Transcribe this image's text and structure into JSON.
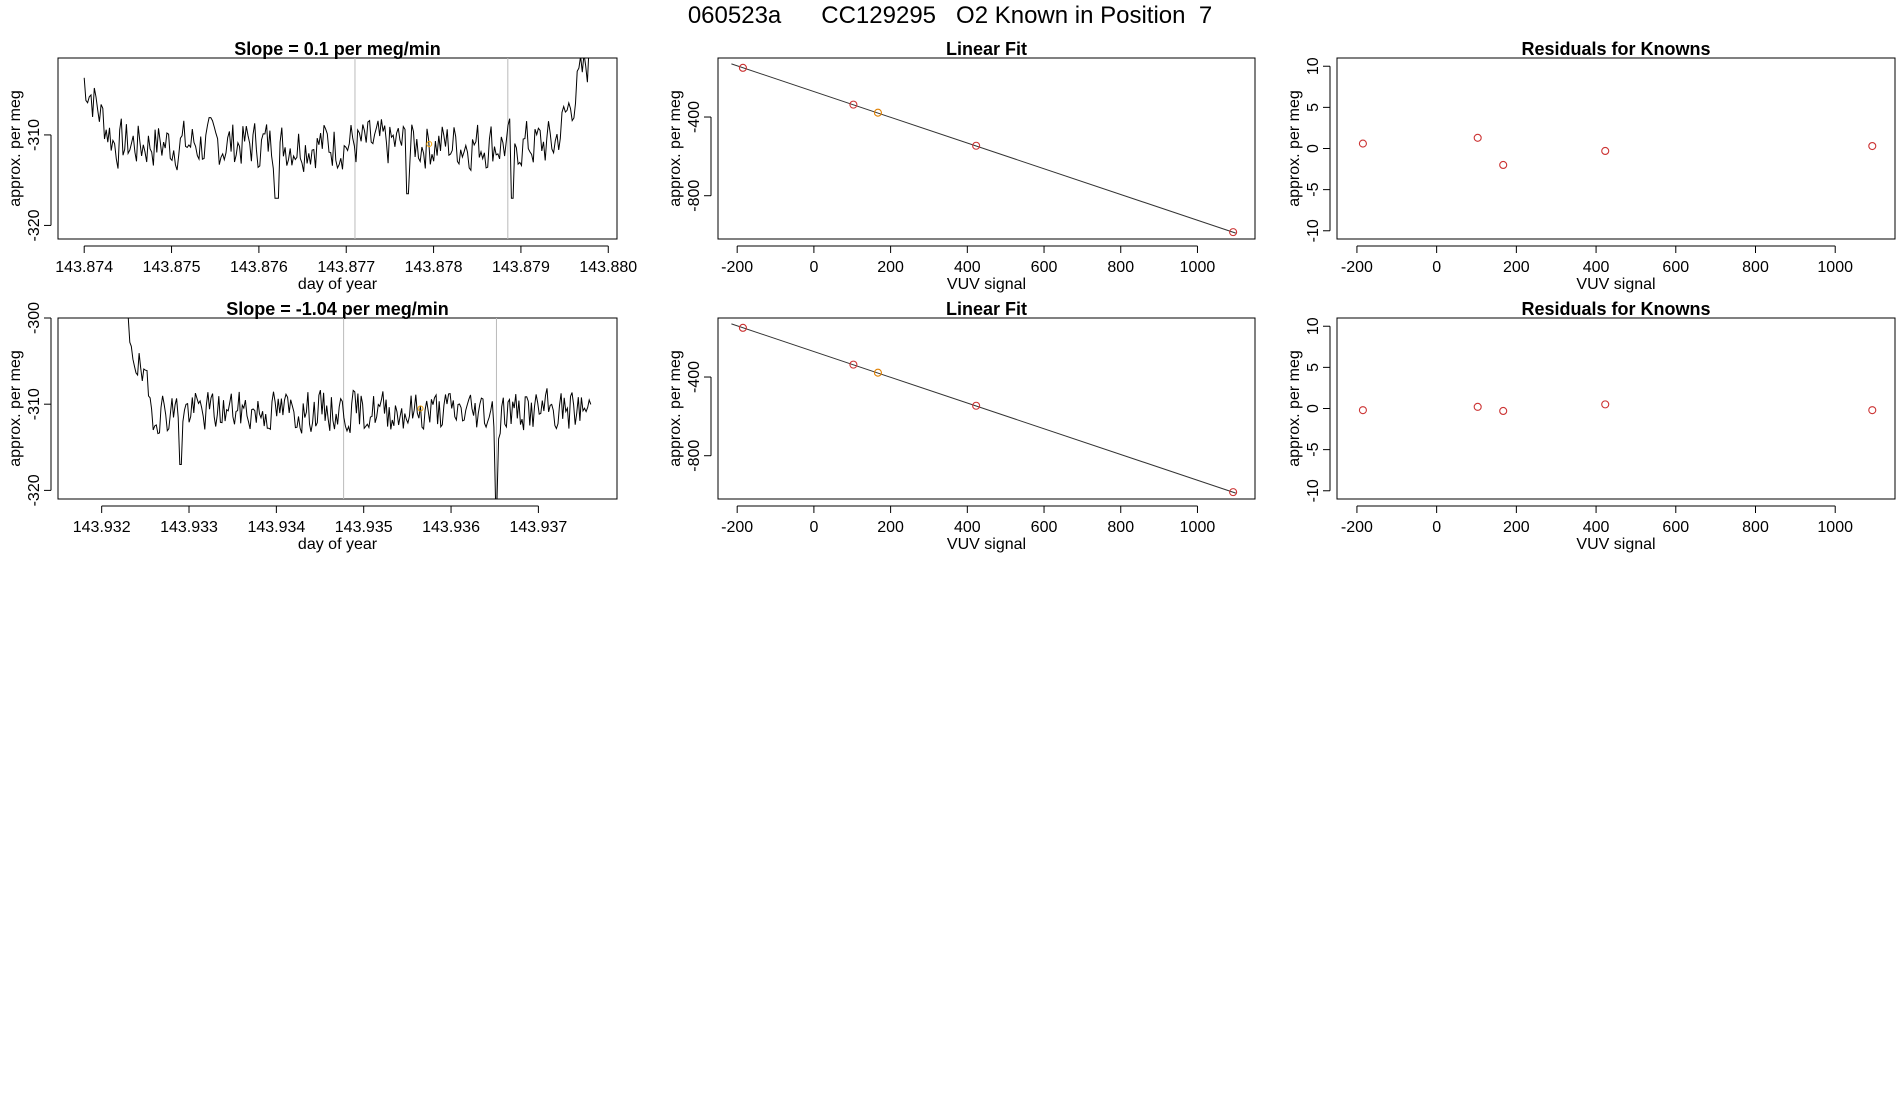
{
  "page_title": "060523a      CC129295   O2 Known in Position  7",
  "chart_data": [
    {
      "type": "line",
      "title": "Slope =  0.1  per meg/min",
      "xlabel": "day of year",
      "ylabel": "approx. per meg",
      "xlim": [
        143.8737,
        143.8801
      ],
      "ylim": [
        -321.5,
        -301.5
      ],
      "xticks": [
        143.874,
        143.875,
        143.876,
        143.877,
        143.878,
        143.879,
        143.88
      ],
      "xtick_labels": [
        "143.874",
        "143.875",
        "143.876",
        "143.877",
        "143.878",
        "143.879",
        "143.880"
      ],
      "yticks": [
        -310,
        -320
      ],
      "ytick_labels": [
        "-310",
        "-320"
      ],
      "vlines": [
        143.8771,
        143.87885
      ],
      "series": [
        {
          "name": "trace",
          "seed": 7,
          "start": -304,
          "mean": -311,
          "end": -301.5,
          "sd": 1.6,
          "n": 300,
          "x0": 143.874,
          "x1": 143.87978,
          "dips": [
            [
              143.8762,
              -317
            ],
            [
              143.8777,
              -316.5
            ],
            [
              143.8789,
              -317
            ]
          ]
        }
      ],
      "highlight": {
        "x": 143.87795,
        "y": -311,
        "color": "#f0a000"
      }
    },
    {
      "type": "scatter",
      "title": "Linear Fit",
      "xlabel": "VUV signal",
      "ylabel": "approx. per meg",
      "xlim": [
        -250,
        1150
      ],
      "ylim": [
        -1020,
        -100
      ],
      "xticks": [
        -200,
        0,
        200,
        400,
        600,
        800,
        1000
      ],
      "xtick_labels": [
        "-200",
        "0",
        "200",
        "400",
        "600",
        "800",
        "1000"
      ],
      "yticks": [
        -400,
        -800
      ],
      "ytick_labels": [
        "-400",
        "-800"
      ],
      "points": [
        {
          "x": -185,
          "y": -150
        },
        {
          "x": 103,
          "y": -337
        },
        {
          "x": 167,
          "y": -378
        },
        {
          "x": 423,
          "y": -546
        },
        {
          "x": 1093,
          "y": -985
        }
      ],
      "point_colors": [
        "#cc3333",
        "#cc3333",
        "#e08000",
        "#cc3333",
        "#cc3333"
      ],
      "fit_line": {
        "x": [
          -215,
          1100
        ],
        "y": [
          -130,
          -990
        ]
      }
    },
    {
      "type": "scatter",
      "title": "Residuals for Knowns",
      "xlabel": "VUV signal",
      "ylabel": "approx. per meg",
      "xlim": [
        -250,
        1150
      ],
      "ylim": [
        -11,
        11
      ],
      "xticks": [
        -200,
        0,
        200,
        400,
        600,
        800,
        1000
      ],
      "xtick_labels": [
        "-200",
        "0",
        "200",
        "400",
        "600",
        "800",
        "1000"
      ],
      "yticks": [
        10,
        5,
        0,
        -5,
        -10
      ],
      "ytick_labels": [
        "10",
        "5",
        "0",
        "-5",
        "-10"
      ],
      "points": [
        {
          "x": -185,
          "y": 0.6
        },
        {
          "x": 103,
          "y": 1.3
        },
        {
          "x": 167,
          "y": -2.0
        },
        {
          "x": 423,
          "y": -0.3
        },
        {
          "x": 1093,
          "y": 0.3
        }
      ],
      "point_colors": [
        "#cc3333",
        "#cc3333",
        "#cc3333",
        "#cc3333",
        "#cc3333"
      ]
    },
    {
      "type": "line",
      "title": "Slope =  -1.04  per meg/min",
      "xlabel": "day of year",
      "ylabel": "approx. per meg",
      "xlim": [
        143.9315,
        143.9379
      ],
      "ylim": [
        -321,
        -300
      ],
      "xticks": [
        143.932,
        143.933,
        143.934,
        143.935,
        143.936,
        143.937
      ],
      "xtick_labels": [
        "143.932",
        "143.933",
        "143.934",
        "143.935",
        "143.936",
        "143.937"
      ],
      "yticks": [
        -300,
        -310,
        -320
      ],
      "ytick_labels": [
        "-300",
        "-310",
        "-320"
      ],
      "vlines": [
        143.93477,
        143.93652
      ],
      "series": [
        {
          "name": "trace",
          "seed": 19,
          "start": -300,
          "mean": -310.8,
          "end": -310.5,
          "sd": 1.4,
          "n": 300,
          "x0": 143.93225,
          "x1": 143.9376,
          "dips": [
            [
              143.9329,
              -317
            ],
            [
              143.93652,
              -321
            ]
          ]
        }
      ],
      "highlight": {
        "x": 143.93565,
        "y": -310.5,
        "color": "#f0a000"
      }
    },
    {
      "type": "scatter",
      "title": "Linear Fit",
      "xlabel": "VUV signal",
      "ylabel": "approx. per meg",
      "xlim": [
        -250,
        1150
      ],
      "ylim": [
        -1020,
        -100
      ],
      "xticks": [
        -200,
        0,
        200,
        400,
        600,
        800,
        1000
      ],
      "xtick_labels": [
        "-200",
        "0",
        "200",
        "400",
        "600",
        "800",
        "1000"
      ],
      "yticks": [
        -400,
        -800
      ],
      "ytick_labels": [
        "-400",
        "-800"
      ],
      "points": [
        {
          "x": -185,
          "y": -150
        },
        {
          "x": 103,
          "y": -337
        },
        {
          "x": 167,
          "y": -378
        },
        {
          "x": 423,
          "y": -546
        },
        {
          "x": 1093,
          "y": -985
        }
      ],
      "point_colors": [
        "#cc3333",
        "#cc3333",
        "#e08000",
        "#cc3333",
        "#cc3333"
      ],
      "fit_line": {
        "x": [
          -215,
          1100
        ],
        "y": [
          -130,
          -990
        ]
      }
    },
    {
      "type": "scatter",
      "title": "Residuals for Knowns",
      "xlabel": "VUV signal",
      "ylabel": "approx. per meg",
      "xlim": [
        -250,
        1150
      ],
      "ylim": [
        -11,
        11
      ],
      "xticks": [
        -200,
        0,
        200,
        400,
        600,
        800,
        1000
      ],
      "xtick_labels": [
        "-200",
        "0",
        "200",
        "400",
        "600",
        "800",
        "1000"
      ],
      "yticks": [
        10,
        5,
        0,
        -5,
        -10
      ],
      "ytick_labels": [
        "10",
        "5",
        "0",
        "-5",
        "-10"
      ],
      "points": [
        {
          "x": -185,
          "y": -0.2
        },
        {
          "x": 103,
          "y": 0.2
        },
        {
          "x": 167,
          "y": -0.3
        },
        {
          "x": 423,
          "y": 0.5
        },
        {
          "x": 1093,
          "y": -0.2
        }
      ],
      "point_colors": [
        "#cc3333",
        "#cc3333",
        "#cc3333",
        "#cc3333",
        "#cc3333"
      ]
    }
  ]
}
